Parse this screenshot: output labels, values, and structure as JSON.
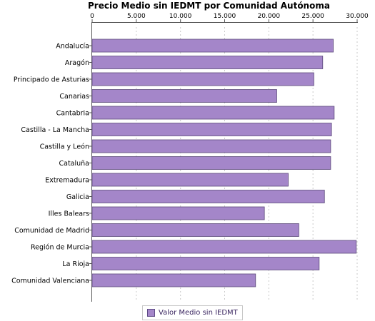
{
  "chart_data": {
    "type": "bar",
    "orientation": "horizontal",
    "title": "Precio Medio sin IEDMT por Comunidad Autónoma",
    "categories": [
      "Andalucía",
      "Aragón",
      "Principado de Asturias",
      "Canarias",
      "Cantabria",
      "Castilla - La Mancha",
      "Castilla y León",
      "Cataluña",
      "Extremadura",
      "Galicia",
      "Illes Balears",
      "Comunidad de Madrid",
      "Región de Murcia",
      "La Rioja",
      "Comunidad Valenciana"
    ],
    "series": [
      {
        "name": "Valor Medio sin IEDMT",
        "color": "#a486c9",
        "values": [
          27300,
          26100,
          25100,
          20900,
          27400,
          27100,
          27000,
          27000,
          22200,
          26300,
          19500,
          23400,
          29900,
          25700,
          18500
        ]
      }
    ],
    "xlim": [
      0,
      30000
    ],
    "ticks": [
      "0",
      "5.000",
      "10.000",
      "15.000",
      "20.000",
      "25.000",
      "30.000"
    ],
    "grid": true,
    "legend_position": "bottom"
  }
}
